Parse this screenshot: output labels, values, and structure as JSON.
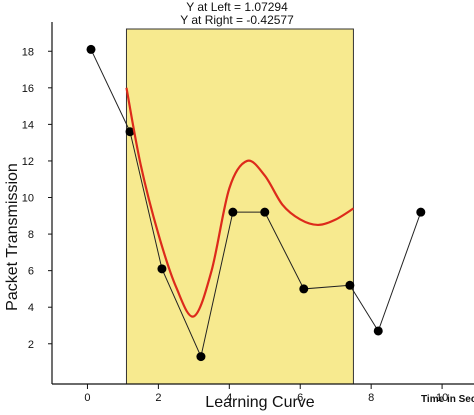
{
  "chart_data": {
    "type": "line",
    "ylabel": "Packet Transmission",
    "xlabel": "Learning Curve",
    "xunit_label": "Time in Sec",
    "annotations": [
      "Y at Left = 1.07294",
      "Y at Right = -0.42577"
    ],
    "xlim": [
      -1,
      10.9
    ],
    "ylim": [
      -0.2,
      19.6
    ],
    "xticks": [
      0,
      2,
      4,
      6,
      8,
      10
    ],
    "yticks": [
      2,
      4,
      6,
      8,
      10,
      12,
      14,
      16,
      18
    ],
    "ytick_labels": [
      "2",
      "4",
      "6",
      "8",
      "10",
      "12",
      "14",
      "16",
      "18"
    ],
    "highlight_region": {
      "x_from": 1.1,
      "x_to": 7.5,
      "color": "#f7ea8f"
    },
    "series": [
      {
        "type": "line_markers",
        "color": "#222222",
        "x": [
          0.1,
          1.2,
          2.1,
          3.2,
          4.1,
          5.0,
          6.1,
          7.4,
          8.2,
          9.4
        ],
        "y": [
          18.1,
          13.6,
          6.1,
          1.3,
          9.2,
          9.2,
          5.0,
          5.2,
          2.7,
          9.2
        ]
      },
      {
        "type": "curve",
        "color": "#dd2a1b",
        "x": [
          1.1,
          1.5,
          2.0,
          2.5,
          3.0,
          3.5,
          4.0,
          4.5,
          5.0,
          5.5,
          6.0,
          6.5,
          7.0,
          7.5
        ],
        "y": [
          16.0,
          11.8,
          8.0,
          5.1,
          3.5,
          6.0,
          10.5,
          12.0,
          11.2,
          9.6,
          8.8,
          8.5,
          8.8,
          9.4
        ]
      }
    ]
  }
}
